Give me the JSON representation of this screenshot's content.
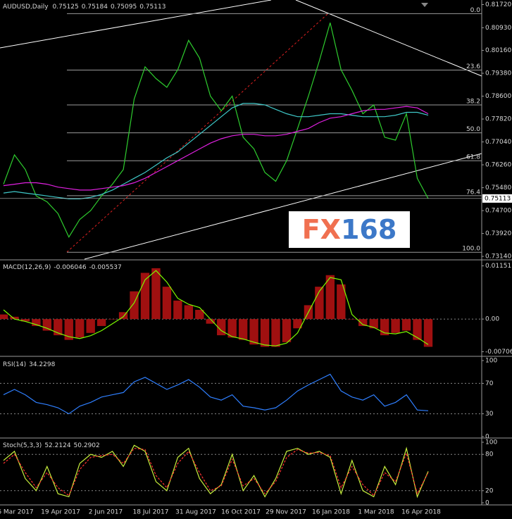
{
  "chart_data": [
    {
      "type": "line",
      "symbol": "AUDUSD,Daily",
      "ohlc": [
        0.75125,
        0.75184,
        0.75095,
        0.75113
      ],
      "ylim": [
        0.7307,
        0.8178
      ],
      "yticks": [
        {
          "value": 0.8172,
          "label": "0.81720"
        },
        {
          "value": 0.8093,
          "label": "0.80930"
        },
        {
          "value": 0.8016,
          "label": "0.80160"
        },
        {
          "value": 0.7938,
          "label": "0.79380"
        },
        {
          "value": 0.786,
          "label": "0.78600"
        },
        {
          "value": 0.7782,
          "label": "0.77820"
        },
        {
          "value": 0.7704,
          "label": "0.77040"
        },
        {
          "value": 0.7626,
          "label": "0.76260"
        },
        {
          "value": 0.7548,
          "label": "0.75480"
        },
        {
          "value": 0.747,
          "label": "0.74700"
        },
        {
          "value": 0.7392,
          "label": "0.73920"
        },
        {
          "value": 0.7314,
          "label": "0.73140"
        }
      ],
      "current_price": 0.75113,
      "x_labels": [
        "6 Mar 2017",
        "19 Apr 2017",
        "2 Jun 2017",
        "18 Jul 2017",
        "31 Aug 2017",
        "16 Oct 2017",
        "29 Nov 2017",
        "16 Jan 2018",
        "1 Mar 2018",
        "16 Apr 2018"
      ],
      "fibo": [
        {
          "label": "0.0",
          "price": 0.8141
        },
        {
          "label": "23.6",
          "price": 0.7949
        },
        {
          "label": "38.2",
          "price": 0.783
        },
        {
          "label": "50.0",
          "price": 0.7735
        },
        {
          "label": "61.8",
          "price": 0.764
        },
        {
          "label": "76.4",
          "price": 0.7521
        },
        {
          "label": "100.0",
          "price": 0.7328
        }
      ],
      "watermark": [
        "FX",
        "168"
      ],
      "series": [
        {
          "color": "#2ecc2e",
          "values": [
            0.756,
            0.766,
            0.761,
            0.752,
            0.75,
            0.746,
            0.738,
            0.744,
            0.747,
            0.752,
            0.756,
            0.761,
            0.785,
            0.796,
            0.792,
            0.789,
            0.795,
            0.805,
            0.799,
            0.786,
            0.781,
            0.786,
            0.772,
            0.768,
            0.76,
            0.757,
            0.764,
            0.775,
            0.786,
            0.798,
            0.811,
            0.795,
            0.788,
            0.78,
            0.783,
            0.772,
            0.771,
            0.78,
            0.758,
            0.7511
          ]
        },
        {
          "color": "#3fc8c8",
          "values": [
            0.753,
            0.7535,
            0.753,
            0.7525,
            0.752,
            0.7515,
            0.751,
            0.751,
            0.7515,
            0.7525,
            0.754,
            0.756,
            0.758,
            0.76,
            0.7625,
            0.765,
            0.767,
            0.77,
            0.773,
            0.776,
            0.779,
            0.782,
            0.7835,
            0.7835,
            0.783,
            0.7815,
            0.78,
            0.779,
            0.779,
            0.7795,
            0.78,
            0.78,
            0.7795,
            0.779,
            0.779,
            0.779,
            0.7795,
            0.7805,
            0.7805,
            0.7795
          ]
        },
        {
          "color": "#e020e0",
          "values": [
            0.7555,
            0.756,
            0.7565,
            0.7565,
            0.756,
            0.755,
            0.7545,
            0.754,
            0.754,
            0.7545,
            0.755,
            0.7555,
            0.7565,
            0.758,
            0.76,
            0.762,
            0.764,
            0.766,
            0.768,
            0.77,
            0.7715,
            0.7725,
            0.773,
            0.773,
            0.7725,
            0.7725,
            0.773,
            0.774,
            0.775,
            0.777,
            0.7785,
            0.779,
            0.78,
            0.781,
            0.7815,
            0.7815,
            0.782,
            0.7825,
            0.782,
            0.78
          ]
        }
      ]
    },
    {
      "type": "bar",
      "name": "MACD(12,26,9)",
      "readings": [
        -0.006046,
        -0.005537
      ],
      "ylim": [
        -0.0076,
        0.0122
      ],
      "yticks": [
        0.011511,
        {
          "value": 0,
          "label": "0.00"
        },
        -0.007062
      ],
      "series": [
        {
          "color": "#a01010",
          "values": [
            0.001,
            0.0005,
            -0.0005,
            -0.0015,
            -0.0025,
            -0.0035,
            -0.0045,
            -0.004,
            -0.003,
            -0.0015,
            0,
            0.0015,
            0.006,
            0.01,
            0.011,
            0.007,
            0.004,
            0.003,
            0.002,
            -0.001,
            -0.0035,
            -0.004,
            -0.0045,
            -0.0055,
            -0.006,
            -0.006,
            -0.005,
            -0.002,
            0.003,
            0.007,
            0.0095,
            0.0075,
            0,
            -0.0015,
            -0.002,
            -0.0035,
            -0.003,
            -0.0025,
            -0.0045,
            -0.006
          ]
        },
        {
          "color": "#7cfc00",
          "values": [
            0.002,
            0,
            -0.0005,
            -0.0012,
            -0.002,
            -0.003,
            -0.0038,
            -0.0042,
            -0.0036,
            -0.0025,
            -0.001,
            0.0005,
            0.0035,
            0.0085,
            0.0105,
            0.008,
            0.0045,
            0.0032,
            0.0025,
            0,
            -0.0025,
            -0.0038,
            -0.0043,
            -0.005,
            -0.0056,
            -0.0058,
            -0.0052,
            -0.003,
            0.0015,
            0.006,
            0.009,
            0.0085,
            0.001,
            -0.0012,
            -0.0018,
            -0.003,
            -0.0032,
            -0.0027,
            -0.004,
            -0.0055
          ]
        }
      ]
    },
    {
      "type": "line",
      "name": "RSI(14)",
      "readings": [
        34.2298
      ],
      "ylim": [
        0,
        100
      ],
      "yticks": [
        100,
        70,
        30,
        0
      ],
      "levels": [
        70,
        30
      ],
      "series": [
        {
          "color": "#2f7fff",
          "values": [
            55,
            62,
            55,
            45,
            42,
            38,
            30,
            40,
            45,
            52,
            55,
            58,
            72,
            78,
            70,
            62,
            68,
            75,
            65,
            52,
            48,
            55,
            40,
            38,
            35,
            38,
            48,
            60,
            68,
            75,
            82,
            60,
            52,
            48,
            55,
            40,
            45,
            55,
            35,
            34
          ]
        }
      ]
    },
    {
      "type": "line",
      "name": "Stoch(5,3,3)",
      "readings": [
        52.2124,
        50.2902
      ],
      "ylim": [
        0,
        100
      ],
      "yticks": [
        100,
        80,
        20,
        0
      ],
      "levels": [
        80,
        20
      ],
      "series": [
        {
          "color": "#c8f03c",
          "values": [
            70,
            85,
            40,
            20,
            60,
            15,
            10,
            65,
            80,
            75,
            85,
            60,
            95,
            85,
            35,
            20,
            75,
            90,
            40,
            15,
            30,
            80,
            20,
            45,
            10,
            40,
            85,
            90,
            80,
            85,
            75,
            15,
            70,
            20,
            10,
            60,
            30,
            90,
            10,
            52
          ]
        },
        {
          "color": "#ff3030",
          "dashed": true,
          "values": [
            65,
            80,
            50,
            25,
            50,
            25,
            12,
            55,
            75,
            78,
            80,
            65,
            90,
            88,
            45,
            25,
            65,
            85,
            50,
            20,
            28,
            72,
            28,
            40,
            15,
            35,
            75,
            88,
            82,
            83,
            78,
            25,
            60,
            30,
            12,
            50,
            35,
            82,
            15,
            50
          ]
        }
      ]
    }
  ]
}
